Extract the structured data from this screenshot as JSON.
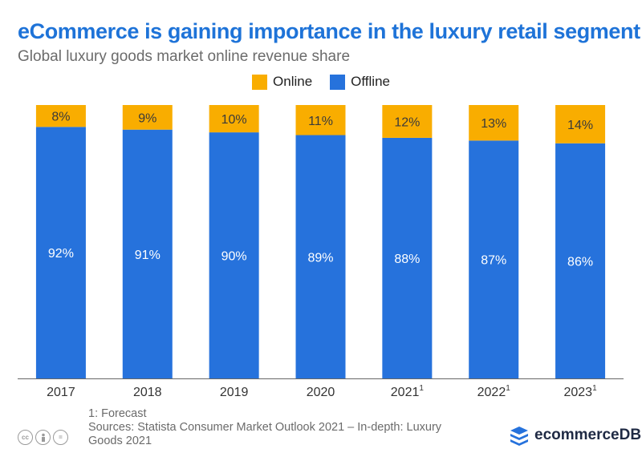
{
  "title": "eCommerce is gaining importance in the luxury retail segment",
  "subtitle": "Global luxury goods market online revenue share",
  "legend": {
    "online": "Online",
    "offline": "Offline"
  },
  "colors": {
    "online": "#f9ad00",
    "offline": "#2672dc",
    "title": "#1e73d8",
    "axis": "#666666"
  },
  "chart_data": {
    "type": "bar",
    "stacked": true,
    "title": "eCommerce is gaining importance in the luxury retail segment",
    "subtitle": "Global luxury goods market online revenue share",
    "categories": [
      "2017",
      "2018",
      "2019",
      "2020",
      "2021",
      "2022",
      "2023"
    ],
    "category_superscripts": [
      "",
      "",
      "",
      "",
      "1",
      "1",
      "1"
    ],
    "ylim": [
      0,
      100
    ],
    "legend_position": "top-center",
    "series": [
      {
        "name": "Offline",
        "values": [
          92,
          91,
          90,
          89,
          88,
          87,
          86
        ],
        "labels": [
          "92%",
          "91%",
          "90%",
          "89%",
          "88%",
          "87%",
          "86%"
        ]
      },
      {
        "name": "Online",
        "values": [
          8,
          9,
          10,
          11,
          12,
          13,
          14
        ],
        "labels": [
          "8%",
          "9%",
          "10%",
          "11%",
          "12%",
          "13%",
          "14%"
        ]
      }
    ]
  },
  "footer": {
    "note": "1: Forecast",
    "source_line1": "Sources: Statista Consumer Market Outlook 2021 – In-depth: Luxury",
    "source_line2": "Goods 2021"
  },
  "license_icons": [
    "cc-icon",
    "by-icon",
    "nd-icon"
  ],
  "brand": {
    "name": "ecommerceDB",
    "icon": "stacked-layers-icon"
  }
}
